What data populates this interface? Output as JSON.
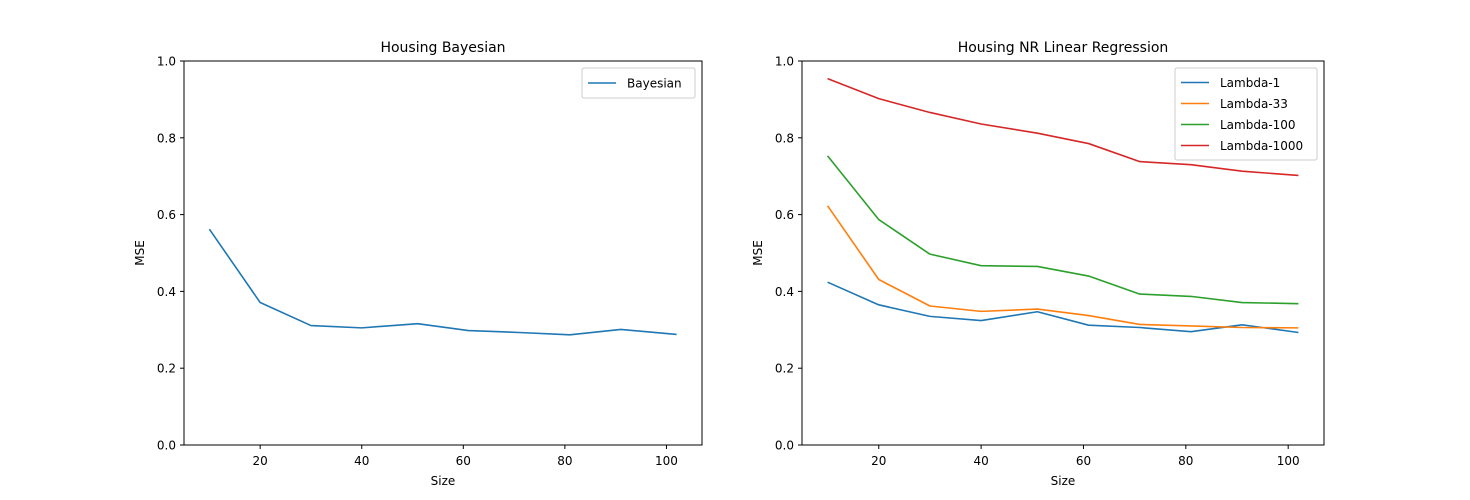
{
  "chart_data": [
    {
      "type": "line",
      "title": "Housing Bayesian",
      "xlabel": "Size",
      "ylabel": "MSE",
      "xlim": [
        5,
        107
      ],
      "ylim": [
        0,
        1
      ],
      "xticks": [
        20,
        40,
        60,
        80,
        100
      ],
      "yticks": [
        0.0,
        0.2,
        0.4,
        0.6,
        0.8,
        1.0
      ],
      "grid": false,
      "legend_loc": "upper right",
      "x": [
        10,
        20,
        30,
        40,
        51,
        61,
        71,
        81,
        91,
        102
      ],
      "series": [
        {
          "name": "Bayesian",
          "color": "#1f77b4",
          "values": [
            0.562,
            0.371,
            0.311,
            0.305,
            0.316,
            0.298,
            0.293,
            0.287,
            0.301,
            0.288
          ]
        }
      ]
    },
    {
      "type": "line",
      "title": "Housing NR Linear Regression",
      "xlabel": "Size",
      "ylabel": "MSE",
      "xlim": [
        5,
        107
      ],
      "ylim": [
        0,
        1
      ],
      "xticks": [
        20,
        40,
        60,
        80,
        100
      ],
      "yticks": [
        0.0,
        0.2,
        0.4,
        0.6,
        0.8,
        1.0
      ],
      "grid": false,
      "legend_loc": "upper right",
      "x": [
        10,
        20,
        30,
        40,
        51,
        61,
        71,
        81,
        91,
        102
      ],
      "series": [
        {
          "name": "Lambda-1",
          "color": "#1f77b4",
          "values": [
            0.424,
            0.365,
            0.335,
            0.324,
            0.347,
            0.312,
            0.306,
            0.295,
            0.313,
            0.293
          ]
        },
        {
          "name": "Lambda-33",
          "color": "#ff7f0e",
          "values": [
            0.623,
            0.431,
            0.362,
            0.348,
            0.354,
            0.337,
            0.314,
            0.31,
            0.306,
            0.305
          ]
        },
        {
          "name": "Lambda-100",
          "color": "#2ca02c",
          "values": [
            0.753,
            0.587,
            0.497,
            0.467,
            0.465,
            0.44,
            0.393,
            0.387,
            0.371,
            0.368
          ]
        },
        {
          "name": "Lambda-1000",
          "color": "#d62728",
          "values": [
            0.954,
            0.902,
            0.866,
            0.836,
            0.812,
            0.785,
            0.738,
            0.73,
            0.713,
            0.702
          ]
        }
      ]
    }
  ]
}
